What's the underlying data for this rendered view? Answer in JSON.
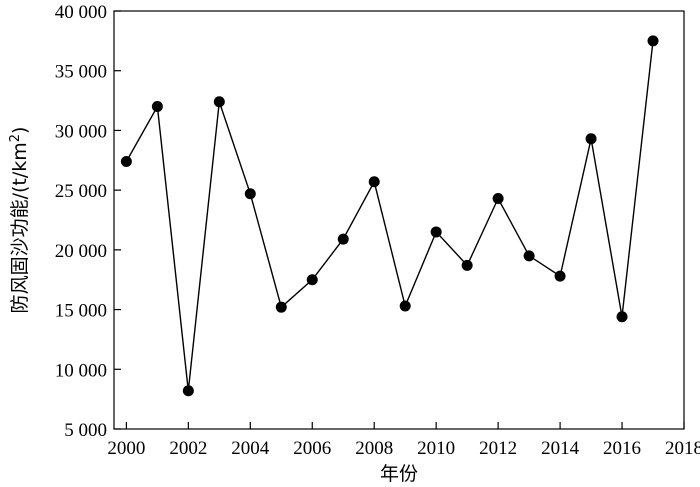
{
  "chart_data": {
    "type": "line",
    "title": "",
    "xlabel": "年份",
    "ylabel": "防风固沙功能/(t/km",
    "ylabel_sup": "2",
    "ylabel_end": ")",
    "xlim": [
      1999.6,
      2018
    ],
    "ylim": [
      5000,
      40000
    ],
    "xticks": [
      2000,
      2002,
      2004,
      2006,
      2008,
      2010,
      2012,
      2014,
      2016,
      2018
    ],
    "xtick_labels": [
      "2000",
      "2002",
      "2004",
      "2006",
      "2008",
      "2010",
      "2012",
      "2014",
      "2016",
      "2018"
    ],
    "yticks": [
      5000,
      10000,
      15000,
      20000,
      25000,
      30000,
      35000,
      40000
    ],
    "ytick_labels": [
      "5 000",
      "10 000",
      "15 000",
      "20 000",
      "25 000",
      "30 000",
      "35 000",
      "40 000"
    ],
    "grid": false,
    "legend": "none",
    "series": [
      {
        "x": [
          2000,
          2001,
          2002,
          2003,
          2004,
          2005,
          2006,
          2007,
          2008,
          2009,
          2010,
          2011,
          2012,
          2013,
          2014,
          2015,
          2016,
          2017
        ],
        "values": [
          27400,
          32000,
          8200,
          32400,
          24700,
          15200,
          17500,
          20900,
          25700,
          15300,
          21500,
          18700,
          24300,
          19500,
          17800,
          29300,
          14400,
          37500
        ],
        "color": "#000000",
        "marker": "circle"
      }
    ]
  }
}
